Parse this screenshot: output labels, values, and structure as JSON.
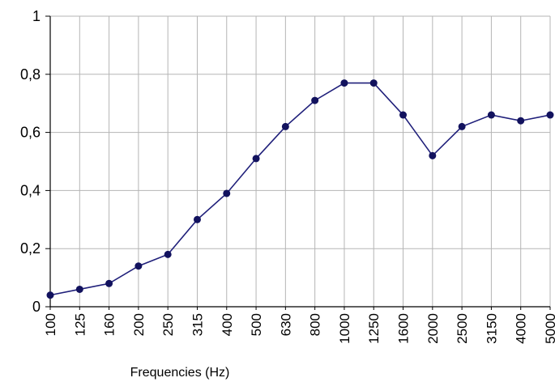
{
  "chart_data": {
    "type": "line",
    "categories": [
      "100",
      "125",
      "160",
      "200",
      "250",
      "315",
      "400",
      "500",
      "630",
      "800",
      "1000",
      "1250",
      "1600",
      "2000",
      "2500",
      "3150",
      "4000",
      "5000"
    ],
    "series": [
      {
        "values": [
          0.04,
          0.06,
          0.08,
          0.14,
          0.18,
          0.3,
          0.39,
          0.51,
          0.62,
          0.71,
          0.77,
          0.77,
          0.66,
          0.52,
          0.62,
          0.66,
          0.64,
          0.66
        ]
      }
    ],
    "xlabel": "Frequencies (Hz)",
    "ylabel": "",
    "ylim": [
      0,
      1
    ],
    "yticks": [
      "0",
      "0,2",
      "0,4",
      "0,6",
      "0,8",
      "1"
    ],
    "grid": true,
    "line_color": "#1f1f7a",
    "marker_color": "#12125e",
    "grid_color": "#b5b5b5"
  }
}
